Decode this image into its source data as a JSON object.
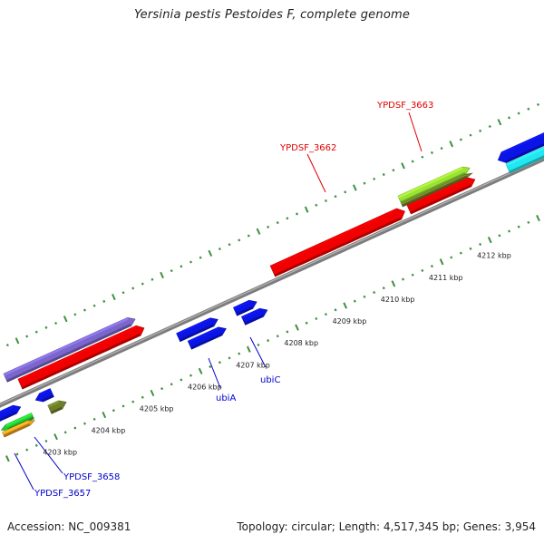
{
  "title": "Yersinia pestis Pestoides F, complete genome",
  "footer": {
    "accession": "Accession: NC_009381",
    "stats": "Topology: circular; Length: 4,517,345 bp; Genes: 3,954"
  },
  "colors": {
    "backbone": "#808080",
    "tick": "#3f8f3f",
    "label_forward": "#e00000",
    "label_reverse": "#0000cc",
    "leader_forward": "#e00000",
    "leader_reverse": "#0000cc"
  },
  "kbp_labels": [
    "4203 kbp",
    "4204 kbp",
    "4205 kbp",
    "4206 kbp",
    "4207 kbp",
    "4208 kbp",
    "4209 kbp",
    "4210 kbp",
    "4211 kbp",
    "4212 kbp"
  ],
  "genes": [
    {
      "name": "YPDSF_3657",
      "color": "#0000cc"
    },
    {
      "name": "YPDSF_3658",
      "color": "#0000cc"
    },
    {
      "name": "ubiA",
      "color": "#0000cc"
    },
    {
      "name": "ubiC",
      "color": "#0000cc"
    },
    {
      "name": "YPDSF_3662",
      "color": "#e00000"
    },
    {
      "name": "YPDSF_3663",
      "color": "#e00000"
    }
  ],
  "features": [
    {
      "name": "purple-feature",
      "color": "#7b66cc"
    },
    {
      "name": "red-feature-left",
      "color": "#f00000"
    },
    {
      "name": "red-feature-3662",
      "color": "#f00000"
    },
    {
      "name": "red-feature-3663",
      "color": "#f00000"
    },
    {
      "name": "lime-feature-3663",
      "color": "#99e433"
    },
    {
      "name": "olive-feature-3663",
      "color": "#6e7f2a"
    },
    {
      "name": "blue-feature-right",
      "color": "#0a14e6"
    },
    {
      "name": "cyan-feature-right",
      "color": "#22e6f0"
    },
    {
      "name": "blue-feature-ubia-1",
      "color": "#0a14e6"
    },
    {
      "name": "blue-feature-ubia-2",
      "color": "#0a14e6"
    },
    {
      "name": "blue-feature-ubic-1",
      "color": "#0a14e6"
    },
    {
      "name": "blue-feature-ubic-2",
      "color": "#0a14e6"
    },
    {
      "name": "blue-feature-left-1",
      "color": "#0a14e6"
    },
    {
      "name": "blue-feature-left-2",
      "color": "#0a14e6"
    },
    {
      "name": "olive-feature-left",
      "color": "#6e7f2a"
    },
    {
      "name": "green-feature-left",
      "color": "#22cc33"
    },
    {
      "name": "orange-feature-left",
      "color": "#f0a020"
    }
  ]
}
